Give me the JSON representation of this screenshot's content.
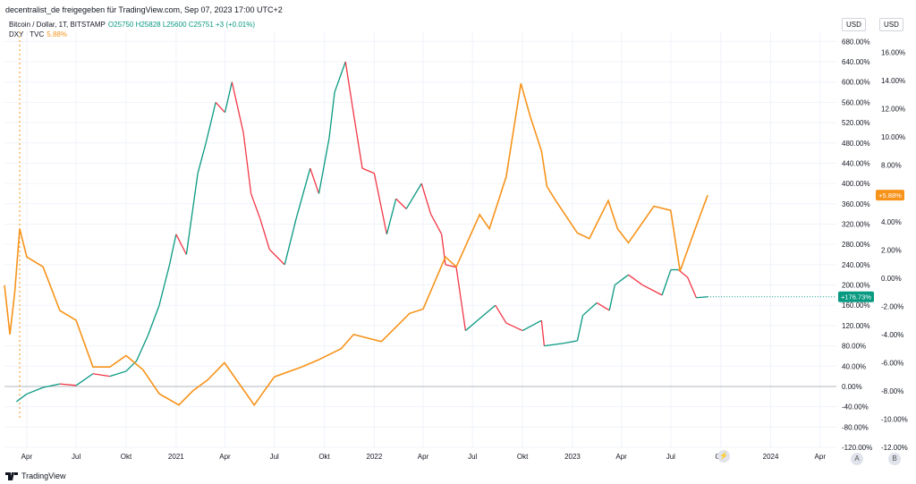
{
  "header": {
    "publisher": "decentralist_de freigegeben für TradingView.com, Sep 07, 2023 17:00 UTC+2"
  },
  "legend": {
    "btc_name": "Bitcoin / Dollar, 1T, BITSTAMP",
    "btc_ohlc": "O25750 H25828 L25600 C25751 +3 (+0.01%)",
    "dxy_name": "DXY · TVC",
    "dxy_value": "5.88%"
  },
  "scale_buttons": {
    "left": "USD",
    "right": "USD"
  },
  "price_badges": {
    "btc": "+176.73%",
    "dxy": "+5.88%"
  },
  "bottom_buttons": {
    "a": "A",
    "b": "B"
  },
  "footer": {
    "brand": "TradingView"
  },
  "colors": {
    "btc_up": "#089981",
    "btc_down": "#f23645",
    "dxy": "#f7931a",
    "grid": "#f0f3fa"
  },
  "chart_data": {
    "type": "line",
    "xlim": [
      "2020-02-20",
      "2024-05-01"
    ],
    "x_ticks": [
      {
        "date": "2020-04-01",
        "label": "Apr"
      },
      {
        "date": "2020-07-01",
        "label": "Jul"
      },
      {
        "date": "2020-10-01",
        "label": "Okt"
      },
      {
        "date": "2021-01-01",
        "label": "2021"
      },
      {
        "date": "2021-04-01",
        "label": "Apr"
      },
      {
        "date": "2021-07-01",
        "label": "Jul"
      },
      {
        "date": "2021-10-01",
        "label": "Okt"
      },
      {
        "date": "2022-01-01",
        "label": "2022"
      },
      {
        "date": "2022-04-01",
        "label": "Apr"
      },
      {
        "date": "2022-07-01",
        "label": "Jul"
      },
      {
        "date": "2022-10-01",
        "label": "Okt"
      },
      {
        "date": "2023-01-01",
        "label": "2023"
      },
      {
        "date": "2023-04-01",
        "label": "Apr"
      },
      {
        "date": "2023-07-01",
        "label": "Jul"
      },
      {
        "date": "2023-10-01",
        "label": "Okt"
      },
      {
        "date": "2024-01-01",
        "label": "2024"
      },
      {
        "date": "2024-04-01",
        "label": "Apr"
      }
    ],
    "left_axis": {
      "unit": "%",
      "ylim": [
        -120,
        700
      ],
      "ticks": [
        "680.00%",
        "640.00%",
        "600.00%",
        "560.00%",
        "520.00%",
        "480.00%",
        "440.00%",
        "400.00%",
        "360.00%",
        "320.00%",
        "280.00%",
        "240.00%",
        "200.00%",
        "160.00%",
        "120.00%",
        "80.00%",
        "40.00%",
        "0.00%",
        "-40.00%",
        "-80.00%",
        "-120.00%"
      ],
      "tick_values": [
        680,
        640,
        600,
        560,
        520,
        480,
        440,
        400,
        360,
        320,
        280,
        240,
        200,
        160,
        120,
        80,
        40,
        0,
        -40,
        -80,
        -120
      ]
    },
    "right_axis": {
      "unit": "%",
      "ylim": [
        -12,
        17.5
      ],
      "ticks": [
        "16.00%",
        "14.00%",
        "12.00%",
        "10.00%",
        "8.00%",
        "6.00%",
        "4.00%",
        "2.00%",
        "0.00%",
        "-2.00%",
        "-4.00%",
        "-6.00%",
        "-8.00%",
        "-10.00%",
        "-12.00%"
      ],
      "tick_values": [
        16,
        14,
        12,
        10,
        8,
        6,
        4,
        2,
        0,
        -2,
        -4,
        -6,
        -8,
        -10,
        -12
      ]
    },
    "series": [
      {
        "name": "Bitcoin / Dollar",
        "axis": "left",
        "points": [
          [
            "2020-03-13",
            -30
          ],
          [
            "2020-04-01",
            -15
          ],
          [
            "2020-05-01",
            -2
          ],
          [
            "2020-06-01",
            5
          ],
          [
            "2020-07-01",
            2
          ],
          [
            "2020-08-01",
            25
          ],
          [
            "2020-09-01",
            20
          ],
          [
            "2020-10-01",
            30
          ],
          [
            "2020-10-20",
            50
          ],
          [
            "2020-11-10",
            100
          ],
          [
            "2020-12-01",
            160
          ],
          [
            "2020-12-20",
            240
          ],
          [
            "2021-01-01",
            300
          ],
          [
            "2021-01-20",
            260
          ],
          [
            "2021-02-10",
            420
          ],
          [
            "2021-02-25",
            480
          ],
          [
            "2021-03-15",
            560
          ],
          [
            "2021-04-01",
            540
          ],
          [
            "2021-04-14",
            600
          ],
          [
            "2021-05-05",
            500
          ],
          [
            "2021-05-19",
            380
          ],
          [
            "2021-06-05",
            330
          ],
          [
            "2021-06-22",
            270
          ],
          [
            "2021-07-20",
            240
          ],
          [
            "2021-08-10",
            330
          ],
          [
            "2021-09-05",
            430
          ],
          [
            "2021-09-21",
            380
          ],
          [
            "2021-10-10",
            490
          ],
          [
            "2021-10-20",
            580
          ],
          [
            "2021-11-09",
            640
          ],
          [
            "2021-11-25",
            530
          ],
          [
            "2021-12-10",
            430
          ],
          [
            "2022-01-01",
            420
          ],
          [
            "2022-01-24",
            300
          ],
          [
            "2022-02-10",
            370
          ],
          [
            "2022-03-01",
            350
          ],
          [
            "2022-03-29",
            400
          ],
          [
            "2022-04-15",
            340
          ],
          [
            "2022-05-05",
            300
          ],
          [
            "2022-05-12",
            240
          ],
          [
            "2022-06-01",
            235
          ],
          [
            "2022-06-18",
            110
          ],
          [
            "2022-07-10",
            130
          ],
          [
            "2022-08-12",
            160
          ],
          [
            "2022-09-01",
            125
          ],
          [
            "2022-10-01",
            110
          ],
          [
            "2022-11-05",
            130
          ],
          [
            "2022-11-10",
            80
          ],
          [
            "2022-12-15",
            85
          ],
          [
            "2023-01-10",
            90
          ],
          [
            "2023-01-20",
            140
          ],
          [
            "2023-02-15",
            165
          ],
          [
            "2023-03-10",
            150
          ],
          [
            "2023-03-20",
            200
          ],
          [
            "2023-04-14",
            220
          ],
          [
            "2023-05-10",
            200
          ],
          [
            "2023-06-15",
            180
          ],
          [
            "2023-07-01",
            230
          ],
          [
            "2023-07-15",
            230
          ],
          [
            "2023-08-01",
            215
          ],
          [
            "2023-08-17",
            175
          ],
          [
            "2023-09-07",
            176.73
          ]
        ]
      },
      {
        "name": "DXY",
        "axis": "right",
        "points": [
          [
            "2020-02-20",
            -0.5
          ],
          [
            "2020-03-01",
            -4.0
          ],
          [
            "2020-03-10",
            -1.0
          ],
          [
            "2020-03-19",
            3.5
          ],
          [
            "2020-04-01",
            1.5
          ],
          [
            "2020-05-01",
            0.8
          ],
          [
            "2020-06-01",
            -2.3
          ],
          [
            "2020-07-01",
            -3.0
          ],
          [
            "2020-08-01",
            -6.3
          ],
          [
            "2020-09-01",
            -6.3
          ],
          [
            "2020-10-01",
            -5.5
          ],
          [
            "2020-11-01",
            -6.5
          ],
          [
            "2020-12-01",
            -8.2
          ],
          [
            "2021-01-06",
            -9.0
          ],
          [
            "2021-02-01",
            -8.0
          ],
          [
            "2021-03-01",
            -7.2
          ],
          [
            "2021-03-31",
            -6.0
          ],
          [
            "2021-05-25",
            -9.0
          ],
          [
            "2021-07-01",
            -7.0
          ],
          [
            "2021-08-20",
            -6.3
          ],
          [
            "2021-09-20",
            -5.8
          ],
          [
            "2021-11-01",
            -5.0
          ],
          [
            "2021-11-24",
            -4.0
          ],
          [
            "2022-01-14",
            -4.5
          ],
          [
            "2022-03-07",
            -2.5
          ],
          [
            "2022-04-01",
            -2.2
          ],
          [
            "2022-05-12",
            1.5
          ],
          [
            "2022-06-01",
            0.8
          ],
          [
            "2022-07-14",
            4.5
          ],
          [
            "2022-08-01",
            3.5
          ],
          [
            "2022-09-01",
            7.2
          ],
          [
            "2022-09-28",
            13.8
          ],
          [
            "2022-10-15",
            11.5
          ],
          [
            "2022-11-05",
            9.0
          ],
          [
            "2022-11-15",
            6.5
          ],
          [
            "2022-12-01",
            5.5
          ],
          [
            "2023-01-10",
            3.2
          ],
          [
            "2023-02-01",
            2.8
          ],
          [
            "2023-03-08",
            5.5
          ],
          [
            "2023-03-25",
            3.5
          ],
          [
            "2023-04-14",
            2.5
          ],
          [
            "2023-05-31",
            5.1
          ],
          [
            "2023-07-01",
            4.8
          ],
          [
            "2023-07-18",
            0.5
          ],
          [
            "2023-08-15",
            3.5
          ],
          [
            "2023-09-07",
            5.88
          ]
        ]
      }
    ],
    "btc_last_value": 176.73,
    "dxy_last_value": 5.88,
    "reference_line_value": 0,
    "marker_date": "2020-03-19",
    "grid": true
  }
}
